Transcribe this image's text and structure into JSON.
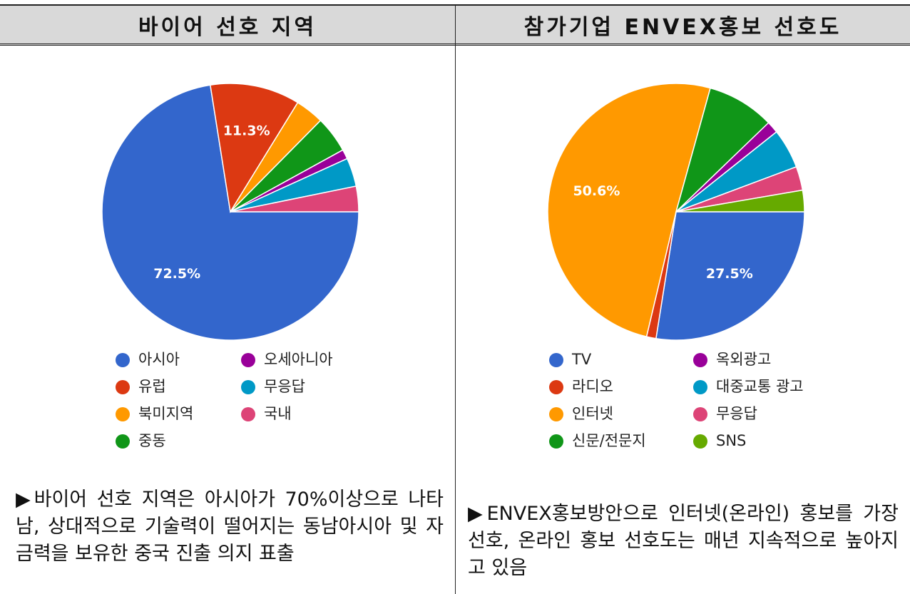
{
  "chart_data": [
    {
      "type": "pie",
      "title": "바이어 선호 지역",
      "categories": [
        "아시아",
        "유럽",
        "북미지역",
        "중동",
        "오세아니아",
        "무응답",
        "국내"
      ],
      "values": [
        72.5,
        11.3,
        3.6,
        4.6,
        1.2,
        3.6,
        3.2
      ],
      "value_labels": [
        "72.5%",
        "11.3%",
        null,
        null,
        null,
        null,
        null
      ],
      "colors": [
        "#3366cc",
        "#dc3912",
        "#ff9900",
        "#109618",
        "#990099",
        "#0099c6",
        "#dd4477"
      ],
      "note": "▶바이어 선호 지역은 아시아가 70%이상으로 나타남, 상대적으로 기술력이 떨어지는 동남아시아 및 자금력을 보유한 중국 진출 의지 표출"
    },
    {
      "type": "pie",
      "title": "참가기업 ENVEX홍보 선호도",
      "categories": [
        "TV",
        "라디오",
        "인터넷",
        "신문/전문지",
        "옥외광고",
        "대중교통 광고",
        "무응답",
        "SNS"
      ],
      "values": [
        27.5,
        1.2,
        50.6,
        8.5,
        1.5,
        5,
        3,
        2.7
      ],
      "value_labels": [
        "27.5%",
        null,
        "50.6%",
        null,
        null,
        null,
        null,
        null
      ],
      "colors": [
        "#3366cc",
        "#dc3912",
        "#ff9900",
        "#109618",
        "#990099",
        "#0099c6",
        "#dd4477",
        "#66aa00"
      ],
      "note": "▶ENVEX홍보방안으로 인터넷(온라인) 홍보를 가장 선호, 온라인 홍보 선호도는 매년 지속적으로 높아지고 있음"
    }
  ]
}
